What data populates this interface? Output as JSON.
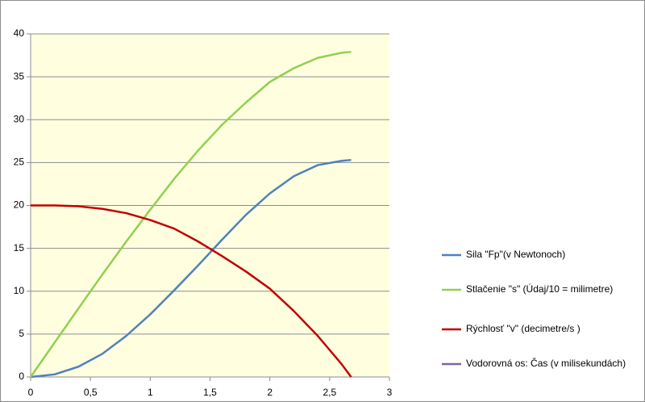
{
  "chart_data": {
    "type": "line",
    "x": [
      0,
      0.2,
      0.4,
      0.6,
      0.8,
      1.0,
      1.2,
      1.4,
      1.6,
      1.8,
      2.0,
      2.2,
      2.4,
      2.6,
      2.68
    ],
    "series": [
      {
        "name": "Sila \"Fp\"(v Newtonoch)",
        "color": "#4f81bd",
        "values": [
          0,
          0.3,
          1.2,
          2.7,
          4.8,
          7.3,
          10.1,
          13.0,
          16.0,
          18.9,
          21.4,
          23.4,
          24.7,
          25.2,
          25.3
        ]
      },
      {
        "name": "Stlačenie \"s\" (Údaj/10 = milimetre)",
        "color": "#92d050",
        "values": [
          0,
          4.0,
          8.0,
          11.95,
          15.8,
          19.5,
          23.1,
          26.4,
          29.4,
          32.0,
          34.4,
          36.0,
          37.2,
          37.8,
          37.9
        ]
      },
      {
        "name": "Rýchlosť \"v\" (decimetre/s )",
        "color": "#c00000",
        "values": [
          20,
          20,
          19.9,
          19.6,
          19.1,
          18.3,
          17.3,
          15.8,
          14.1,
          12.3,
          10.3,
          7.7,
          4.8,
          1.5,
          0
        ]
      },
      {
        "name": "Vodorovná os: Čas (v milisekundách)",
        "color": "#8064a2",
        "values": [
          null,
          null,
          null,
          null,
          null,
          null,
          null,
          null,
          null,
          null,
          null,
          null,
          null,
          null,
          null
        ]
      }
    ],
    "xlim": [
      0,
      3
    ],
    "xticks": [
      0,
      {
        "value": 0.5,
        "label": "0,5"
      },
      1,
      {
        "value": 1.5,
        "label": "1,5"
      },
      2,
      {
        "value": 2.5,
        "label": "2,5"
      },
      3
    ],
    "ylim": [
      0,
      40
    ],
    "yticks": [
      0,
      5,
      10,
      15,
      20,
      25,
      30,
      35,
      40
    ],
    "grid": true,
    "legend": "right",
    "plot_background": "#ffffe0"
  }
}
